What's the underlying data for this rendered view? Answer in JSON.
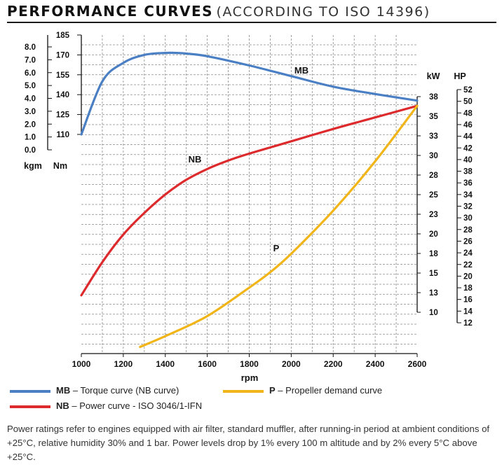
{
  "title": "PERFORMANCE CURVES",
  "subtitle": "(ACCORDING TO ISO 14396)",
  "chart_data": {
    "type": "line",
    "xlabel": "rpm",
    "xlim": [
      1000,
      2600
    ],
    "x_ticks": [
      "1000",
      "1200",
      "1400",
      "1600",
      "1800",
      "2000",
      "2200",
      "2400",
      "2600"
    ],
    "grid": true,
    "axes": {
      "kgm": {
        "label": "kgm",
        "range": [
          0.0,
          8.0
        ],
        "ticks": [
          "8.0",
          "7.0",
          "6.0",
          "5.0",
          "4.0",
          "3.0",
          "2.0",
          "1.0",
          "0.0"
        ]
      },
      "Nm": {
        "label": "Nm",
        "range": [
          110,
          185
        ],
        "ticks": [
          "185",
          "170",
          "155",
          "140",
          "125",
          "110"
        ]
      },
      "kW": {
        "label": "kW",
        "range": [
          10,
          38
        ],
        "ticks": [
          "38",
          "35",
          "33",
          "30",
          "28",
          "25",
          "23",
          "20",
          "18",
          "15",
          "13",
          "10"
        ]
      },
      "HP": {
        "label": "HP",
        "range": [
          12,
          52
        ],
        "ticks": [
          "52",
          "50",
          "48",
          "46",
          "44",
          "42",
          "40",
          "38",
          "36",
          "34",
          "32",
          "30",
          "28",
          "26",
          "24",
          "22",
          "20",
          "18",
          "16",
          "14",
          "12"
        ]
      }
    },
    "series": [
      {
        "name": "MB",
        "axis": "Nm",
        "color": "#4a7fc4",
        "x": [
          1000,
          1100,
          1200,
          1300,
          1400,
          1450,
          1500,
          1600,
          1800,
          2000,
          2200,
          2400,
          2600
        ],
        "y": [
          110,
          150,
          164,
          170,
          171.5,
          171.5,
          171,
          169,
          162,
          154,
          146,
          140.5,
          135.5
        ]
      },
      {
        "name": "NB",
        "axis": "kW",
        "color": "#dd2a2c",
        "x": [
          1000,
          1100,
          1200,
          1300,
          1400,
          1500,
          1600,
          1700,
          1800,
          2000,
          2200,
          2400,
          2600
        ],
        "y": [
          12.2,
          16.5,
          20.1,
          22.9,
          25.3,
          27.2,
          28.6,
          29.7,
          30.6,
          32.2,
          33.8,
          35.3,
          36.8
        ]
      },
      {
        "name": "P",
        "axis": "kW",
        "color": "#f1b51a",
        "x": [
          1280,
          1400,
          1600,
          1800,
          1900,
          2000,
          2200,
          2400,
          2600
        ],
        "y": [
          5.5,
          6.9,
          9.5,
          13.2,
          15.2,
          17.6,
          23.2,
          29.6,
          36.8
        ]
      }
    ],
    "legend": {
      "position": "bottom",
      "items": [
        {
          "key": "MB",
          "text": "– Torque curve (NB curve)",
          "color": "#4a7fc4"
        },
        {
          "key": "NB",
          "text": "– Power curve - ISO 3046/1-IFN",
          "color": "#dd2a2c"
        },
        {
          "key": "P",
          "text": "– Propeller demand curve",
          "color": "#f1b51a"
        }
      ]
    }
  },
  "footnote": "Power ratings refer to engines equipped with air filter, standard muffler, after running-in period at ambient conditions of +25°C, relative humidity 30% and 1 bar. Power levels drop by 1% every 100 m altitude and by 2% every 5°C above +25°C."
}
